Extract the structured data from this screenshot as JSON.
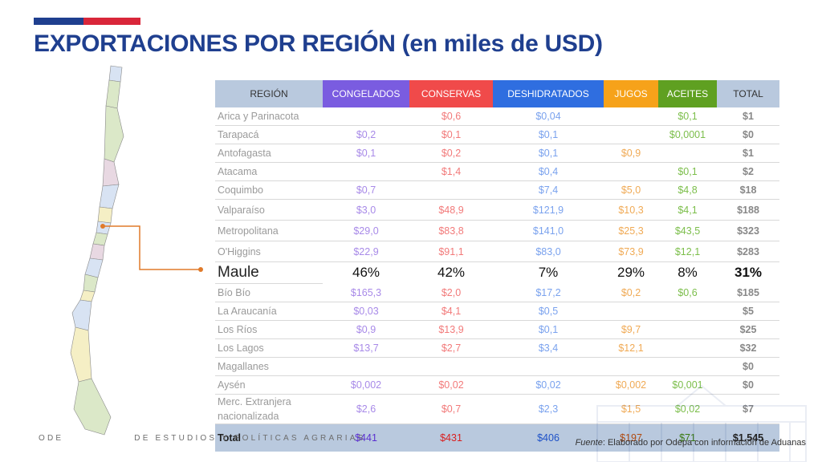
{
  "title": "EXPORTACIONES POR REGIÓN (en miles de USD)",
  "colors": {
    "brand_blue": "#1f3f8f",
    "brand_red": "#d9263a",
    "congelados": "#7a5ce0",
    "conservas": "#f04a4a",
    "deshidratados": "#2f6ee0",
    "jugos": "#f6a21a",
    "aceites": "#5fa021",
    "header_neutral": "#b9c9de"
  },
  "table": {
    "headers": [
      "REGIÓN",
      "CONGELADOS",
      "CONSERVAS",
      "DESHIDRATADOS",
      "JUGOS",
      "ACEITES",
      "TOTAL"
    ],
    "rows": [
      [
        "Arica y Parinacota",
        "",
        "$0,6",
        "$0,04",
        "",
        "$0,1",
        "$1"
      ],
      [
        "Tarapacá",
        "$0,2",
        "$0,1",
        "$0,1",
        "",
        "$0,0001",
        "$0"
      ],
      [
        "Antofagasta",
        "$0,1",
        "$0,2",
        "$0,1",
        "$0,9",
        "",
        "$1"
      ],
      [
        "Atacama",
        "",
        "$1,4",
        "$0,4",
        "",
        "$0,1",
        "$2"
      ],
      [
        "Coquimbo",
        "$0,7",
        "",
        "$7,4",
        "$5,0",
        "$4,8",
        "$18"
      ],
      [
        "Valparaíso",
        "$3,0",
        "$48,9",
        "$121,9",
        "$10,3",
        "$4,1",
        "$188"
      ],
      [
        "Metropolitana",
        "$29,0",
        "$83,8",
        "$141,0",
        "$25,3",
        "$43,5",
        "$323"
      ],
      [
        "O'Higgins",
        "$22,9",
        "$91,1",
        "$83,0",
        "$73,9",
        "$12,1",
        "$283"
      ],
      [
        "Maule",
        "46%",
        "42%",
        "7%",
        "29%",
        "8%",
        "31%"
      ],
      [
        "Bío Bío",
        "$165,3",
        "$2,0",
        "$17,2",
        "$0,2",
        "$0,6",
        "$185"
      ],
      [
        "La Araucanía",
        "$0,03",
        "$4,1",
        "$0,5",
        "",
        "",
        "$5"
      ],
      [
        "Los Ríos",
        "$0,9",
        "$13,9",
        "$0,1",
        "$9,7",
        "",
        "$25"
      ],
      [
        "Los Lagos",
        "$13,7",
        "$2,7",
        "$3,4",
        "$12,1",
        "",
        "$32"
      ],
      [
        "Magallanes",
        "",
        "",
        "",
        "",
        "",
        "$0"
      ],
      [
        "Aysén",
        "$0,002",
        "$0,02",
        "$0,02",
        "$0,002",
        "$0,001",
        "$0"
      ],
      [
        "Merc. Extranjera nacionalizada",
        "$2,6",
        "$0,7",
        "$2,3",
        "$1,5",
        "$0,02",
        "$7"
      ]
    ],
    "total": [
      "Total",
      "$441",
      "$431",
      "$406",
      "$197",
      "$71",
      "$1.545"
    ]
  },
  "footer": {
    "org_left": "ODE",
    "org_right": "DE ESTUDIOS Y POLÍTICAS AGRARIAS",
    "source_label": "Fuente",
    "source_text": ": Elaborado por Odepa con información de Aduanas"
  }
}
